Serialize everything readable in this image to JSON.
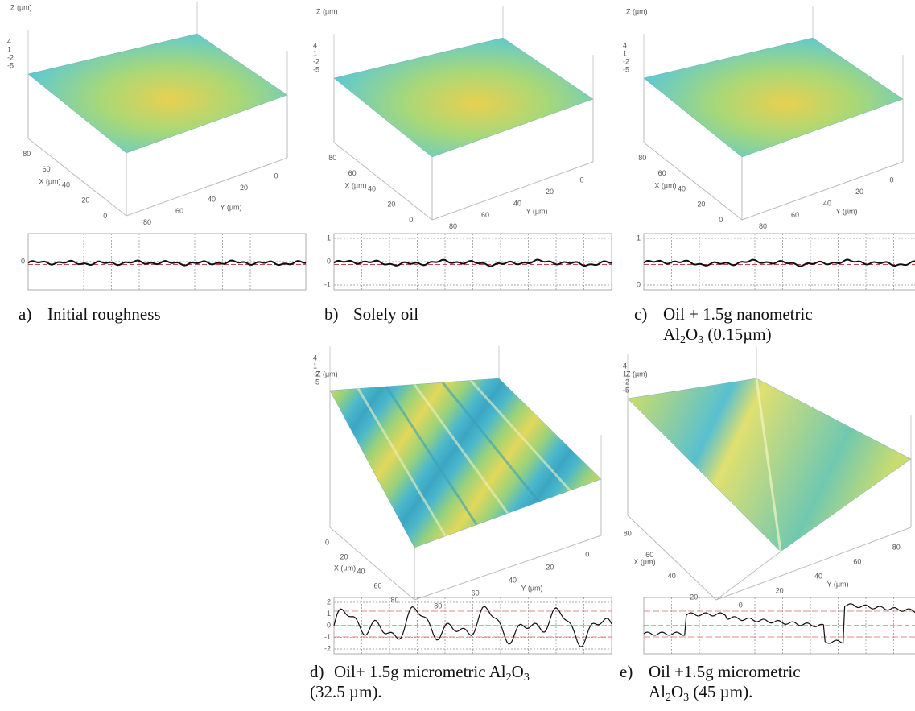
{
  "panels": [
    {
      "caption": {
        "label": "a)",
        "lines": [
          [
            {
              "text": "Initial roughness"
            }
          ]
        ]
      },
      "surface": {
        "z_label": "Z (µm)",
        "z_ticks": [
          "4",
          "1",
          "-2",
          "-5"
        ],
        "x_label": "X (µm)",
        "x_ticks": [
          "80",
          "60",
          "40",
          "20",
          "0"
        ],
        "y_label": "Y (µm)",
        "y_ticks": [
          "80",
          "60",
          "40",
          "20",
          "0"
        ]
      },
      "profile": {
        "ticks": [
          "0"
        ]
      }
    },
    {
      "caption": {
        "label": "b)",
        "lines": [
          [
            {
              "text": "Solely oil"
            }
          ]
        ]
      },
      "surface": {
        "z_label": "Z (µm)",
        "z_ticks": [
          "4",
          "1",
          "-2",
          "-5"
        ],
        "x_label": "X (µm)",
        "x_ticks": [
          "80",
          "60",
          "40",
          "20",
          "0"
        ],
        "y_label": "Y (µm)",
        "y_ticks": [
          "80",
          "60",
          "40",
          "20",
          "0"
        ]
      },
      "profile": {
        "ticks": [
          "1",
          "0",
          "-1"
        ]
      }
    },
    {
      "caption": {
        "label": "c)",
        "lines": [
          [
            {
              "text": "Oil + 1.5g nanometric"
            }
          ],
          [
            {
              "text": "Al"
            },
            {
              "sub": "2"
            },
            {
              "text": "O"
            },
            {
              "sub": "3"
            },
            {
              "text": " (0.15µm)"
            }
          ]
        ]
      },
      "surface": {
        "z_label": "Z (µm)",
        "z_ticks": [
          "4",
          "1",
          "-2",
          "-5"
        ],
        "x_label": "X (µm)",
        "x_ticks": [
          "80",
          "60",
          "40",
          "20",
          "0"
        ],
        "y_label": "Y (µm)",
        "y_ticks": [
          "80",
          "60",
          "40",
          "20",
          "0"
        ]
      },
      "profile": {
        "ticks": [
          "1",
          "0"
        ]
      }
    },
    {
      "caption": {
        "label": "d)",
        "lines": [
          [
            {
              "text": "Oil+ 1.5g micrometric Al"
            },
            {
              "sub": "2"
            },
            {
              "text": "O"
            },
            {
              "sub": "3"
            }
          ],
          [
            {
              "text": "(32.5 µm)."
            }
          ]
        ]
      },
      "surface": {
        "z_label": "Z (µm)",
        "z_ticks": [
          "4",
          "1",
          "-2",
          "-5"
        ],
        "x_label": "X (µm)",
        "x_ticks": [
          "0",
          "20",
          "40",
          "60",
          "80"
        ],
        "y_label": "Y (µm)",
        "y_ticks": [
          "80",
          "60",
          "40",
          "20",
          "0"
        ]
      },
      "profile": {
        "ticks": [
          "2",
          "1",
          "0",
          "-1",
          "-2"
        ]
      }
    },
    {
      "caption": {
        "label": "e)",
        "lines": [
          [
            {
              "text": "Oil +1.5g micrometric"
            }
          ],
          [
            {
              "text": "Al"
            },
            {
              "sub": "2"
            },
            {
              "text": "O"
            },
            {
              "sub": "3"
            },
            {
              "text": " (45 µm)."
            }
          ]
        ]
      },
      "surface": {
        "z_label": "Z (µm)",
        "z_ticks": [
          "4",
          "1",
          "-2",
          "-5"
        ],
        "x_label": "X (µm)",
        "x_ticks": [
          "80",
          "60",
          "40",
          "20"
        ],
        "y_label": "Y (µm)",
        "y_ticks": [
          "0",
          "20",
          "40",
          "60",
          "80"
        ]
      },
      "profile": {
        "ticks": []
      }
    }
  ]
}
